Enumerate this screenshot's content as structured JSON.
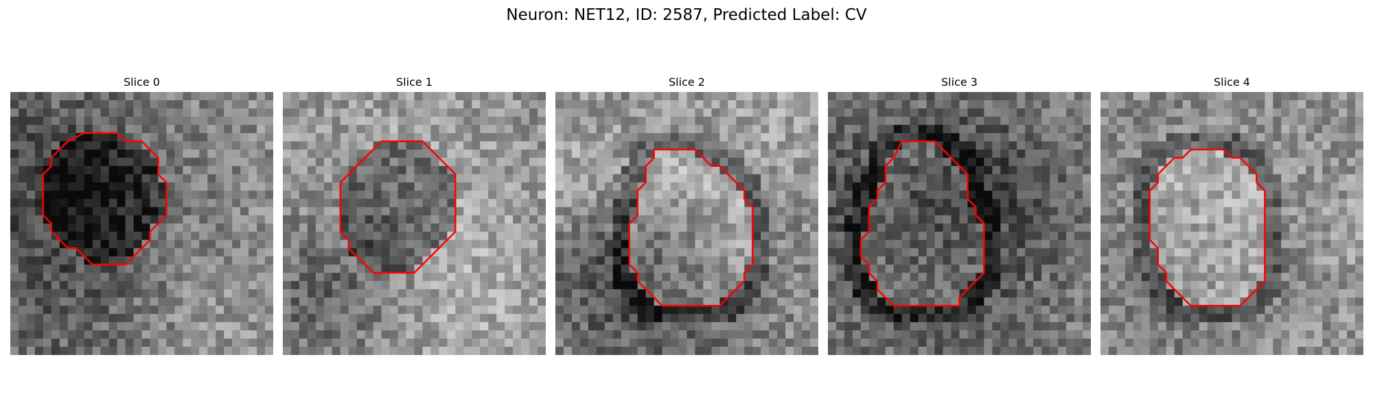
{
  "figure": {
    "title": "Neuron: NET12, ID: 2587, Predicted Label: CV"
  },
  "contour_color": "#ff0000",
  "panels": [
    {
      "title": "Slice 0",
      "seed": 11,
      "center_tone": "dark"
    },
    {
      "title": "Slice 1",
      "seed": 23,
      "center_tone": "dark"
    },
    {
      "title": "Slice 2",
      "seed": 37,
      "center_tone": "light"
    },
    {
      "title": "Slice 3",
      "seed": 53,
      "center_tone": "light"
    },
    {
      "title": "Slice 4",
      "seed": 71,
      "center_tone": "light"
    }
  ]
}
